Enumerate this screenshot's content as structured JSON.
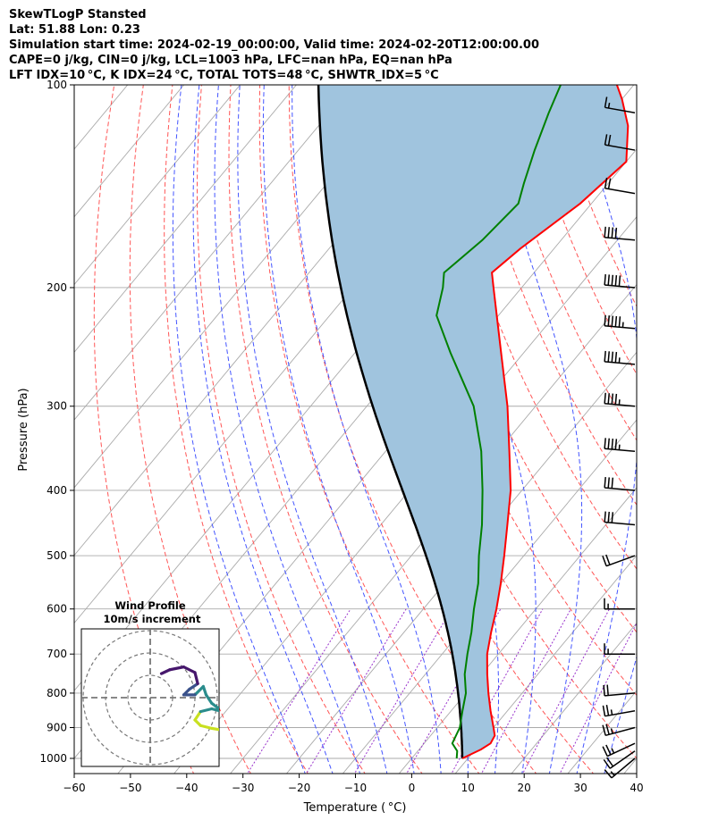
{
  "header": {
    "line1": "SkewTLogP Stansted",
    "line2": "Lat: 51.88   Lon: 0.23",
    "line3": "Simulation start time: 2024-02-19_00:00:00, Valid time: 2024-02-20T12:00:00.00",
    "line4": "CAPE=0 j/kg, CIN=0 j/kg, LCL=1003 hPa, LFC=nan hPa, EQ=nan hPa",
    "line5": "LFT IDX=10 °C, K IDX=24 °C, TOTAL TOTS=48 °C, SHWTR_IDX=5 °C"
  },
  "chart_data": {
    "type": "skewt",
    "xlabel": "Temperature ( °C)",
    "ylabel": "Pressure (hPa)",
    "xlim": [
      -60,
      40
    ],
    "ylim": [
      1040,
      100
    ],
    "x_ticks": [
      -60,
      -50,
      -40,
      -30,
      -20,
      -10,
      0,
      10,
      20,
      30,
      40
    ],
    "x_tick_labels": [
      "−60",
      "−50",
      "−40",
      "−30",
      "−20",
      "−10",
      "0",
      "10",
      "20",
      "30",
      "40"
    ],
    "y_ticks": [
      1000,
      900,
      800,
      700,
      600,
      500,
      400,
      300,
      200,
      100
    ],
    "y_scale": "log",
    "grid": true,
    "temperature": {
      "color": "#ff0000",
      "p": [
        1000,
        970,
        950,
        925,
        900,
        850,
        800,
        750,
        700,
        650,
        600,
        550,
        500,
        450,
        400,
        350,
        300,
        250,
        200,
        190,
        175,
        150,
        130,
        115,
        105,
        100
      ],
      "t": [
        9.0,
        11.0,
        11.8,
        11.4,
        10.0,
        7.0,
        4.0,
        1.0,
        -2.0,
        -4.5,
        -7.0,
        -10.0,
        -13.5,
        -17.5,
        -22.0,
        -28.0,
        -35.0,
        -44.0,
        -55.0,
        -57.5,
        -56.0,
        -52.0,
        -50.0,
        -55.0,
        -60.0,
        -63.0
      ]
    },
    "dewpoint": {
      "color": "#008000",
      "p": [
        1000,
        975,
        950,
        900,
        850,
        800,
        750,
        700,
        650,
        600,
        550,
        500,
        450,
        400,
        350,
        300,
        250,
        220,
        200,
        190,
        170,
        150,
        140,
        125,
        110,
        100
      ],
      "td": [
        8.0,
        7.0,
        5.0,
        4.0,
        2.0,
        0.0,
        -3.0,
        -5.5,
        -8.0,
        -11.0,
        -14.0,
        -18.0,
        -22.0,
        -27.0,
        -33.0,
        -41.0,
        -53.0,
        -61.0,
        -64.0,
        -66.0,
        -64.0,
        -63.0,
        -65.0,
        -68.0,
        -71.0,
        -73.0
      ]
    },
    "parcel": {
      "color": "#000000",
      "start": {
        "p": 1000,
        "t": 9.0
      }
    },
    "cape_cin_shading": "#a0c4de",
    "isotherm_color": "#aaaaaa",
    "dry_adiabats": {
      "color": "#ff5555",
      "theta_c": [
        -40,
        -30,
        -20,
        -10,
        0,
        10,
        20,
        30,
        40,
        50,
        60,
        70,
        80,
        90,
        100,
        110
      ]
    },
    "moist_adiabats": {
      "color": "#4455ff",
      "start_t": [
        -20,
        -15,
        -10,
        -5,
        0,
        5,
        10,
        15,
        20,
        25,
        30,
        35
      ]
    },
    "mixing_ratio": {
      "color": "#9933cc"
    },
    "wind_barbs": [
      {
        "p": 1000,
        "speed_kt": 15,
        "dir": 230
      },
      {
        "p": 975,
        "speed_kt": 20,
        "dir": 235
      },
      {
        "p": 950,
        "speed_kt": 25,
        "dir": 245
      },
      {
        "p": 900,
        "speed_kt": 25,
        "dir": 255
      },
      {
        "p": 850,
        "speed_kt": 25,
        "dir": 260
      },
      {
        "p": 800,
        "speed_kt": 20,
        "dir": 265
      },
      {
        "p": 700,
        "speed_kt": 15,
        "dir": 270
      },
      {
        "p": 600,
        "speed_kt": 15,
        "dir": 270
      },
      {
        "p": 500,
        "speed_kt": 20,
        "dir": 250
      },
      {
        "p": 450,
        "speed_kt": 30,
        "dir": 275
      },
      {
        "p": 400,
        "speed_kt": 30,
        "dir": 275
      },
      {
        "p": 350,
        "speed_kt": 45,
        "dir": 275
      },
      {
        "p": 300,
        "speed_kt": 45,
        "dir": 275
      },
      {
        "p": 260,
        "speed_kt": 45,
        "dir": 275
      },
      {
        "p": 230,
        "speed_kt": 55,
        "dir": 275
      },
      {
        "p": 200,
        "speed_kt": 50,
        "dir": 275
      },
      {
        "p": 170,
        "speed_kt": 40,
        "dir": 275
      },
      {
        "p": 145,
        "speed_kt": 20,
        "dir": 280
      },
      {
        "p": 125,
        "speed_kt": 20,
        "dir": 280
      },
      {
        "p": 110,
        "speed_kt": 15,
        "dir": 280
      }
    ],
    "hodograph": {
      "title_line1": "Wind Profile",
      "title_line2": "10m/s increment",
      "rings": 3,
      "points": [
        {
          "u": 14,
          "v": -6,
          "color": "#c8e020"
        },
        {
          "u": 11,
          "v": -5.5,
          "color": "#c8e020"
        },
        {
          "u": 9,
          "v": -5,
          "color": "#c8e020"
        },
        {
          "u": 8,
          "v": -4,
          "color": "#c8e020"
        },
        {
          "u": 9,
          "v": -2.5,
          "color": "#2a8c8c"
        },
        {
          "u": 11,
          "v": -2,
          "color": "#2a8c8c"
        },
        {
          "u": 13,
          "v": -2.5,
          "color": "#2a8c8c"
        },
        {
          "u": 11,
          "v": -1,
          "color": "#2a8c8c"
        },
        {
          "u": 10,
          "v": 0.5,
          "color": "#2a8c8c"
        },
        {
          "u": 9.5,
          "v": 2,
          "color": "#2a8c8c"
        },
        {
          "u": 8,
          "v": 0.5,
          "color": "#3a528b"
        },
        {
          "u": 6,
          "v": 0.5,
          "color": "#3a528b"
        },
        {
          "u": 7,
          "v": 1.5,
          "color": "#3a528b"
        },
        {
          "u": 8.5,
          "v": 2.5,
          "color": "#46176c"
        },
        {
          "u": 8,
          "v": 4.5,
          "color": "#46176c"
        },
        {
          "u": 6,
          "v": 5.5,
          "color": "#46176c"
        },
        {
          "u": 3.5,
          "v": 5.0,
          "color": "#46176c"
        },
        {
          "u": 2.0,
          "v": 4.3,
          "color": "#46176c"
        }
      ]
    }
  }
}
